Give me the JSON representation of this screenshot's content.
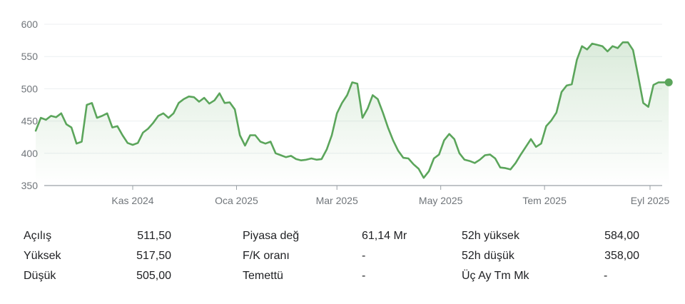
{
  "chart_data": {
    "type": "area",
    "title": "",
    "xlabel": "",
    "ylabel": "",
    "ylim": [
      350,
      600
    ],
    "y_ticks": [
      350,
      400,
      450,
      500,
      550,
      600
    ],
    "x_tick_labels": [
      {
        "label": "Kas 2024",
        "date": "2024-11-01"
      },
      {
        "label": "Oca 2025",
        "date": "2025-01-01"
      },
      {
        "label": "Mar 2025",
        "date": "2025-03-01"
      },
      {
        "label": "May 2025",
        "date": "2025-05-01"
      },
      {
        "label": "Tem 2025",
        "date": "2025-07-01"
      },
      {
        "label": "Eyl 2025",
        "date": "2025-09-01"
      }
    ],
    "grid": true,
    "line_color": "#5ba55b",
    "series": [
      {
        "x": [
          "2024-09-05",
          "2024-09-08",
          "2024-09-11",
          "2024-09-14",
          "2024-09-17",
          "2024-09-20",
          "2024-09-23",
          "2024-09-26",
          "2024-09-29",
          "2024-10-02",
          "2024-10-05",
          "2024-10-08",
          "2024-10-11",
          "2024-10-14",
          "2024-10-17",
          "2024-10-20",
          "2024-10-23",
          "2024-10-26",
          "2024-10-29",
          "2024-11-01",
          "2024-11-04",
          "2024-11-07",
          "2024-11-10",
          "2024-11-13",
          "2024-11-16",
          "2024-11-19",
          "2024-11-22",
          "2024-11-25",
          "2024-11-28",
          "2024-12-01",
          "2024-12-04",
          "2024-12-07",
          "2024-12-10",
          "2024-12-13",
          "2024-12-16",
          "2024-12-19",
          "2024-12-22",
          "2024-12-25",
          "2024-12-28",
          "2024-12-31",
          "2025-01-03",
          "2025-01-06",
          "2025-01-09",
          "2025-01-12",
          "2025-01-15",
          "2025-01-18",
          "2025-01-21",
          "2025-01-24",
          "2025-01-27",
          "2025-01-30",
          "2025-02-02",
          "2025-02-05",
          "2025-02-08",
          "2025-02-11",
          "2025-02-14",
          "2025-02-17",
          "2025-02-20",
          "2025-02-23",
          "2025-02-26",
          "2025-03-01",
          "2025-03-04",
          "2025-03-07",
          "2025-03-10",
          "2025-03-13",
          "2025-03-16",
          "2025-03-19",
          "2025-03-22",
          "2025-03-25",
          "2025-03-28",
          "2025-03-31",
          "2025-04-03",
          "2025-04-06",
          "2025-04-09",
          "2025-04-12",
          "2025-04-15",
          "2025-04-18",
          "2025-04-21",
          "2025-04-24",
          "2025-04-27",
          "2025-04-30",
          "2025-05-03",
          "2025-05-06",
          "2025-05-09",
          "2025-05-12",
          "2025-05-15",
          "2025-05-18",
          "2025-05-21",
          "2025-05-24",
          "2025-05-27",
          "2025-05-30",
          "2025-06-02",
          "2025-06-05",
          "2025-06-08",
          "2025-06-11",
          "2025-06-14",
          "2025-06-17",
          "2025-06-20",
          "2025-06-23",
          "2025-06-26",
          "2025-06-29",
          "2025-07-02",
          "2025-07-05",
          "2025-07-08",
          "2025-07-11",
          "2025-07-14",
          "2025-07-17",
          "2025-07-20",
          "2025-07-23",
          "2025-07-26",
          "2025-07-29",
          "2025-08-01",
          "2025-08-04",
          "2025-08-07",
          "2025-08-10",
          "2025-08-13",
          "2025-08-16",
          "2025-08-19",
          "2025-08-22",
          "2025-08-25",
          "2025-08-28",
          "2025-08-31",
          "2025-09-03",
          "2025-09-06",
          "2025-09-09",
          "2025-09-12"
        ],
        "values": [
          435,
          455,
          452,
          458,
          456,
          462,
          445,
          440,
          415,
          418,
          475,
          478,
          455,
          458,
          462,
          440,
          442,
          428,
          416,
          413,
          416,
          432,
          438,
          447,
          458,
          462,
          455,
          462,
          478,
          484,
          488,
          487,
          480,
          486,
          477,
          482,
          493,
          478,
          479,
          468,
          428,
          412,
          428,
          428,
          418,
          415,
          418,
          400,
          397,
          394,
          396,
          391,
          389,
          390,
          392,
          390,
          391,
          406,
          428,
          462,
          478,
          490,
          510,
          508,
          455,
          469,
          490,
          484,
          463,
          440,
          420,
          404,
          393,
          392,
          383,
          376,
          362,
          372,
          392,
          398,
          420,
          430,
          422,
          400,
          390,
          388,
          385,
          390,
          397,
          398,
          392,
          378,
          377,
          375,
          385,
          398,
          410,
          422,
          410,
          415,
          442,
          451,
          463,
          495,
          505,
          507,
          545,
          566,
          561,
          570,
          568,
          566,
          558,
          566,
          563,
          572,
          572,
          560,
          520,
          478,
          472,
          506,
          510,
          510,
          510
        ]
      }
    ],
    "last_point_marker": true
  },
  "stats": {
    "rows": [
      {
        "label": "Açılış",
        "value": "511,50"
      },
      {
        "label": "Yüksek",
        "value": "517,50"
      },
      {
        "label": "Düşük",
        "value": "505,00"
      },
      {
        "label": "Piyasa değ",
        "value": "61,14 Mr"
      },
      {
        "label": "F/K oranı",
        "value": "-"
      },
      {
        "label": "Temettü",
        "value": "-"
      },
      {
        "label": "52h yüksek",
        "value": "584,00"
      },
      {
        "label": "52h düşük",
        "value": "358,00"
      },
      {
        "label": "Üç Ay Tm Mk",
        "value": "-"
      }
    ]
  }
}
